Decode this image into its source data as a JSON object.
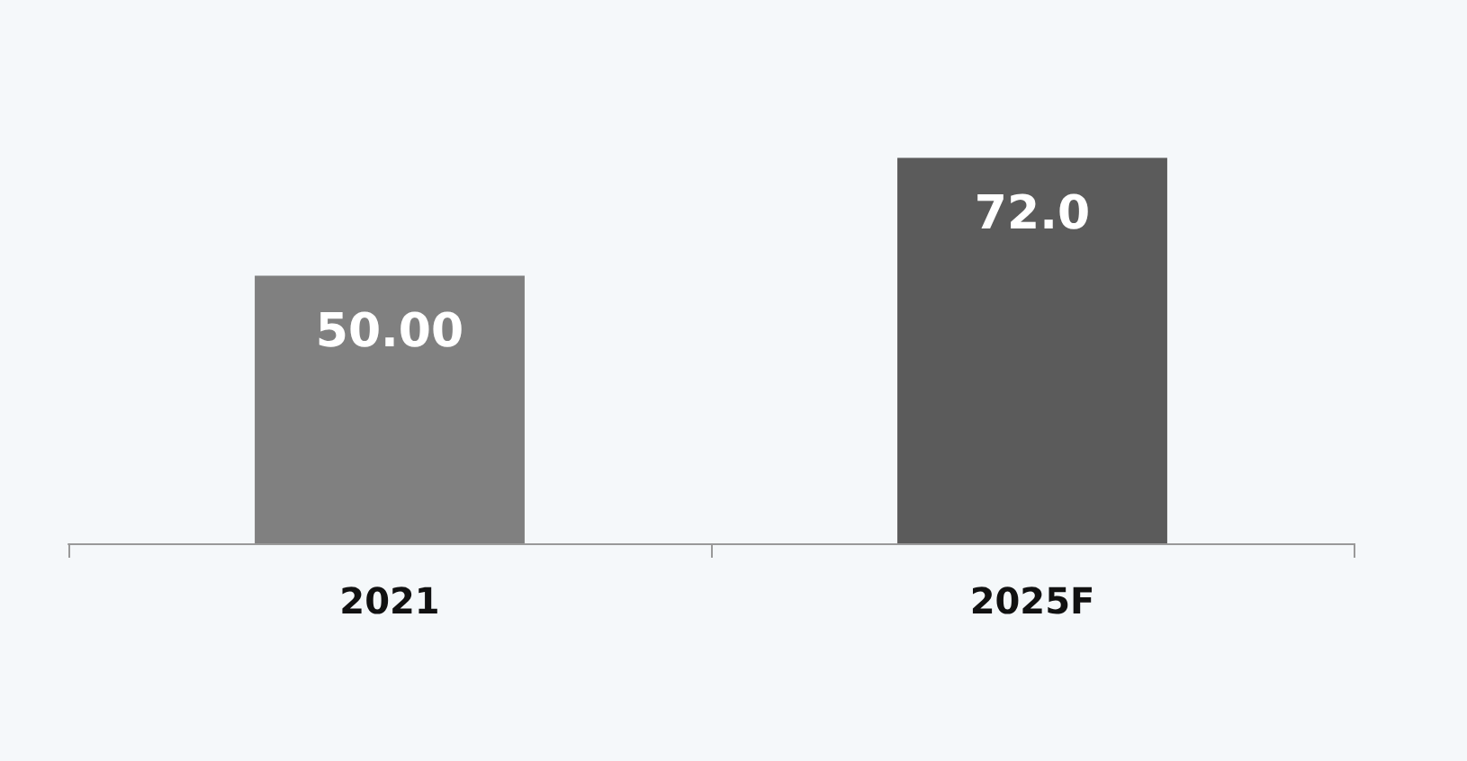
{
  "chart_data": {
    "type": "bar",
    "categories": [
      "2021",
      "2025F"
    ],
    "values": [
      50,
      72
    ],
    "value_labels": [
      "50.00",
      "72.0"
    ],
    "colors": [
      "#808080",
      "#5b5b5b"
    ]
  }
}
